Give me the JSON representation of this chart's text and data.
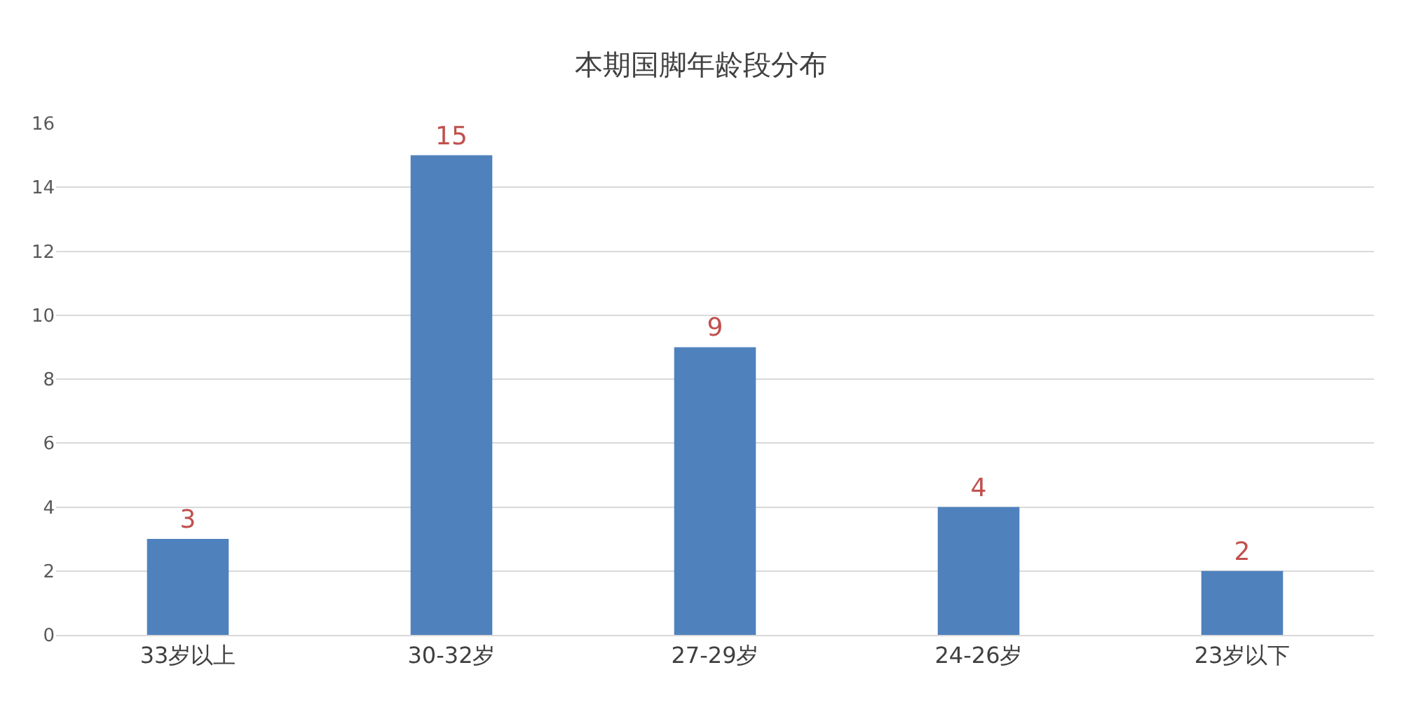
{
  "chart_data": {
    "type": "bar",
    "title": "本期国脚年龄段分布",
    "categories": [
      "33岁以上",
      "30-32岁",
      "27-29岁",
      "24-26岁",
      "23岁以下"
    ],
    "values": [
      3,
      15,
      9,
      4,
      2
    ],
    "color": "#4f81bd",
    "ylim": [
      0,
      16
    ],
    "yticks": [
      0,
      2,
      4,
      6,
      8,
      10,
      12,
      14,
      16
    ],
    "grid": "y",
    "data_labels": true,
    "legend": false
  }
}
